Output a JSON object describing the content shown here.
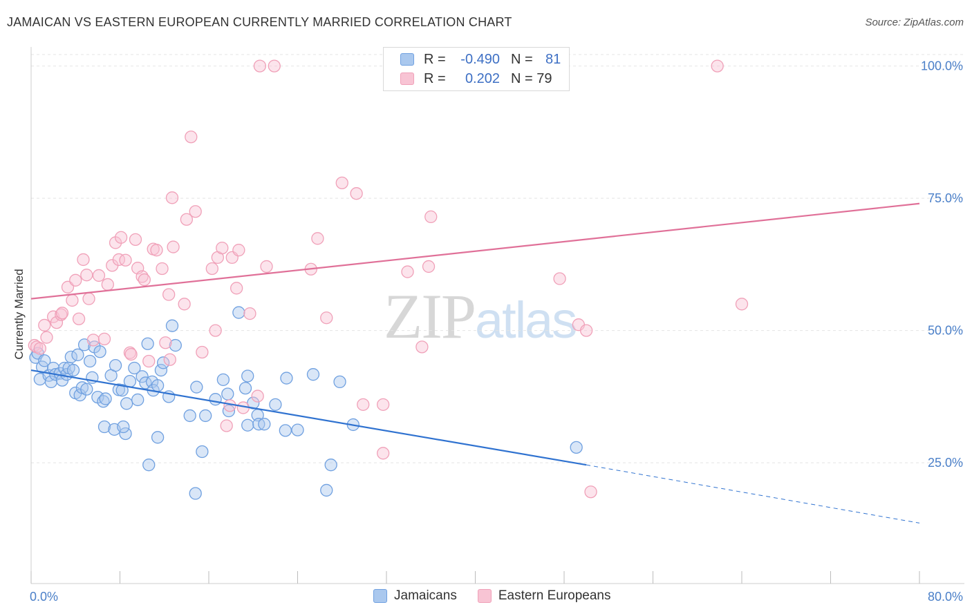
{
  "header": {
    "title": "JAMAICAN VS EASTERN EUROPEAN CURRENTLY MARRIED CORRELATION CHART",
    "source": "Source: ZipAtlas.com"
  },
  "watermark": {
    "zip": "ZIP",
    "atlas": "atlas"
  },
  "legend_box": {
    "rows": [
      {
        "r_label": "R =",
        "r_value": "-0.490",
        "n_label": "N =",
        "n_value": "81",
        "color": "#6fa0e0"
      },
      {
        "r_label": "R =",
        "r_value": "0.202",
        "n_label": "N = 79",
        "n_value": "",
        "color": "#f0a0b8"
      }
    ]
  },
  "bottom_legend": {
    "items": [
      {
        "label": "Jamaicans",
        "color": "#6fa0e0"
      },
      {
        "label": "Eastern Europeans",
        "color": "#f0a0b8"
      }
    ]
  },
  "chart_data": {
    "type": "scatter",
    "title": "JAMAICAN VS EASTERN EUROPEAN CURRENTLY MARRIED CORRELATION CHART",
    "xlabel": "",
    "ylabel": "Currently Married",
    "xlim": [
      0,
      80
    ],
    "ylim": [
      0,
      105
    ],
    "x_tick_labels": [
      "0.0%",
      "80.0%"
    ],
    "y_ticks": [
      25,
      50,
      75,
      100
    ],
    "y_tick_labels": [
      "25.0%",
      "50.0%",
      "75.0%",
      "100.0%"
    ],
    "grid": true,
    "legend_position": "top-center",
    "colors": {
      "jamaicans_fill": "#aac8ee",
      "jamaicans_stroke": "#6fa0e0",
      "jamaicans_line": "#2f72d0",
      "eastern_fill": "#f8c4d4",
      "eastern_stroke": "#f0a0b8",
      "eastern_line": "#e07098"
    },
    "series": [
      {
        "name": "Jamaicans",
        "r": -0.49,
        "n": 81,
        "trend": {
          "x": [
            0,
            50
          ],
          "y": [
            42.5,
            24.6
          ],
          "dashed_to": [
            80,
            13.6
          ]
        },
        "points": [
          [
            0.4,
            44.9
          ],
          [
            0.6,
            45.7
          ],
          [
            0.8,
            40.8
          ],
          [
            1.0,
            43.1
          ],
          [
            1.2,
            44.3
          ],
          [
            1.6,
            41.5
          ],
          [
            1.8,
            40.3
          ],
          [
            2.0,
            42.9
          ],
          [
            2.2,
            41.7
          ],
          [
            2.6,
            41.9
          ],
          [
            2.8,
            40.6
          ],
          [
            3.0,
            42.9
          ],
          [
            3.2,
            41.7
          ],
          [
            3.4,
            42.9
          ],
          [
            3.6,
            45.0
          ],
          [
            3.8,
            42.5
          ],
          [
            4.0,
            38.2
          ],
          [
            4.2,
            45.4
          ],
          [
            4.4,
            37.8
          ],
          [
            4.6,
            39.2
          ],
          [
            4.8,
            47.3
          ],
          [
            5.0,
            38.9
          ],
          [
            5.3,
            44.2
          ],
          [
            5.5,
            41.1
          ],
          [
            5.7,
            46.9
          ],
          [
            6.0,
            37.4
          ],
          [
            6.2,
            46.0
          ],
          [
            6.5,
            36.6
          ],
          [
            6.7,
            37.1
          ],
          [
            7.2,
            41.5
          ],
          [
            7.6,
            43.4
          ],
          [
            7.9,
            38.8
          ],
          [
            8.2,
            38.7
          ],
          [
            8.6,
            36.2
          ],
          [
            8.9,
            40.4
          ],
          [
            9.3,
            42.9
          ],
          [
            9.6,
            36.9
          ],
          [
            10.0,
            41.3
          ],
          [
            10.3,
            40.1
          ],
          [
            10.5,
            47.5
          ],
          [
            10.9,
            40.3
          ],
          [
            11.0,
            38.7
          ],
          [
            11.4,
            39.6
          ],
          [
            11.7,
            42.5
          ],
          [
            11.9,
            43.9
          ],
          [
            12.4,
            37.5
          ],
          [
            12.7,
            50.9
          ],
          [
            13.0,
            47.2
          ],
          [
            6.6,
            31.8
          ],
          [
            7.5,
            31.3
          ],
          [
            8.5,
            30.5
          ],
          [
            10.6,
            24.6
          ],
          [
            11.4,
            29.8
          ],
          [
            14.3,
            33.9
          ],
          [
            14.9,
            39.3
          ],
          [
            15.4,
            27.1
          ],
          [
            15.7,
            33.9
          ],
          [
            16.6,
            37.0
          ],
          [
            17.3,
            40.7
          ],
          [
            17.7,
            38.0
          ],
          [
            17.8,
            34.8
          ],
          [
            18.7,
            53.4
          ],
          [
            19.3,
            39.1
          ],
          [
            19.5,
            41.4
          ],
          [
            19.5,
            32.1
          ],
          [
            20.0,
            36.3
          ],
          [
            20.4,
            34.0
          ],
          [
            20.5,
            32.3
          ],
          [
            21.0,
            32.3
          ],
          [
            22.0,
            36.0
          ],
          [
            23.0,
            41.0
          ],
          [
            24.0,
            31.2
          ],
          [
            25.4,
            41.7
          ],
          [
            27.0,
            24.6
          ],
          [
            27.8,
            40.3
          ],
          [
            29.0,
            32.2
          ],
          [
            26.6,
            19.8
          ],
          [
            14.8,
            19.2
          ],
          [
            49.1,
            27.9
          ],
          [
            8.3,
            31.8
          ],
          [
            22.9,
            31.1
          ]
        ]
      },
      {
        "name": "Eastern Europeans",
        "r": 0.202,
        "n": 79,
        "trend": {
          "x": [
            0,
            80
          ],
          "y": [
            56.0,
            74.0
          ]
        },
        "points": [
          [
            0.3,
            47.2
          ],
          [
            0.5,
            46.9
          ],
          [
            0.8,
            46.6
          ],
          [
            1.2,
            51.0
          ],
          [
            1.4,
            48.7
          ],
          [
            2.0,
            52.6
          ],
          [
            2.3,
            51.5
          ],
          [
            2.7,
            53.0
          ],
          [
            2.8,
            53.3
          ],
          [
            3.3,
            58.2
          ],
          [
            3.7,
            55.7
          ],
          [
            4.0,
            59.5
          ],
          [
            4.3,
            52.2
          ],
          [
            4.7,
            63.4
          ],
          [
            5.0,
            60.5
          ],
          [
            5.6,
            48.2
          ],
          [
            6.1,
            60.4
          ],
          [
            6.6,
            48.4
          ],
          [
            6.9,
            58.7
          ],
          [
            7.3,
            62.3
          ],
          [
            7.6,
            66.6
          ],
          [
            7.9,
            63.4
          ],
          [
            8.1,
            67.6
          ],
          [
            8.5,
            63.3
          ],
          [
            8.9,
            45.8
          ],
          [
            9.4,
            67.2
          ],
          [
            9.6,
            61.8
          ],
          [
            10.0,
            60.2
          ],
          [
            10.2,
            59.6
          ],
          [
            10.6,
            44.2
          ],
          [
            11.0,
            65.4
          ],
          [
            11.3,
            65.2
          ],
          [
            11.8,
            61.7
          ],
          [
            12.1,
            47.7
          ],
          [
            12.4,
            56.8
          ],
          [
            12.7,
            75.1
          ],
          [
            12.8,
            65.8
          ],
          [
            13.8,
            55.0
          ],
          [
            14.0,
            71.0
          ],
          [
            14.4,
            86.6
          ],
          [
            14.8,
            72.5
          ],
          [
            15.4,
            45.9
          ],
          [
            16.3,
            61.7
          ],
          [
            16.6,
            50.0
          ],
          [
            16.8,
            63.8
          ],
          [
            17.2,
            65.6
          ],
          [
            17.6,
            32.0
          ],
          [
            18.1,
            63.8
          ],
          [
            18.5,
            58.0
          ],
          [
            18.7,
            65.2
          ],
          [
            19.7,
            53.2
          ],
          [
            20.4,
            37.6
          ],
          [
            20.6,
            100.0
          ],
          [
            21.2,
            62.1
          ],
          [
            21.9,
            100.0
          ],
          [
            25.2,
            61.6
          ],
          [
            25.8,
            67.4
          ],
          [
            26.6,
            52.4
          ],
          [
            28.0,
            77.9
          ],
          [
            29.3,
            75.9
          ],
          [
            29.9,
            36.0
          ],
          [
            31.7,
            26.8
          ],
          [
            31.7,
            36.0
          ],
          [
            33.9,
            61.1
          ],
          [
            35.2,
            46.9
          ],
          [
            35.8,
            62.1
          ],
          [
            36.0,
            71.5
          ],
          [
            38.9,
            100.0
          ],
          [
            47.6,
            59.8
          ],
          [
            49.3,
            51.1
          ],
          [
            50.0,
            50.0
          ],
          [
            50.4,
            19.5
          ],
          [
            61.8,
            100.0
          ],
          [
            64.0,
            55.0
          ],
          [
            5.2,
            56.0
          ],
          [
            9.0,
            45.5
          ],
          [
            12.5,
            44.5
          ],
          [
            17.9,
            35.8
          ],
          [
            19.1,
            35.4
          ]
        ]
      }
    ]
  }
}
